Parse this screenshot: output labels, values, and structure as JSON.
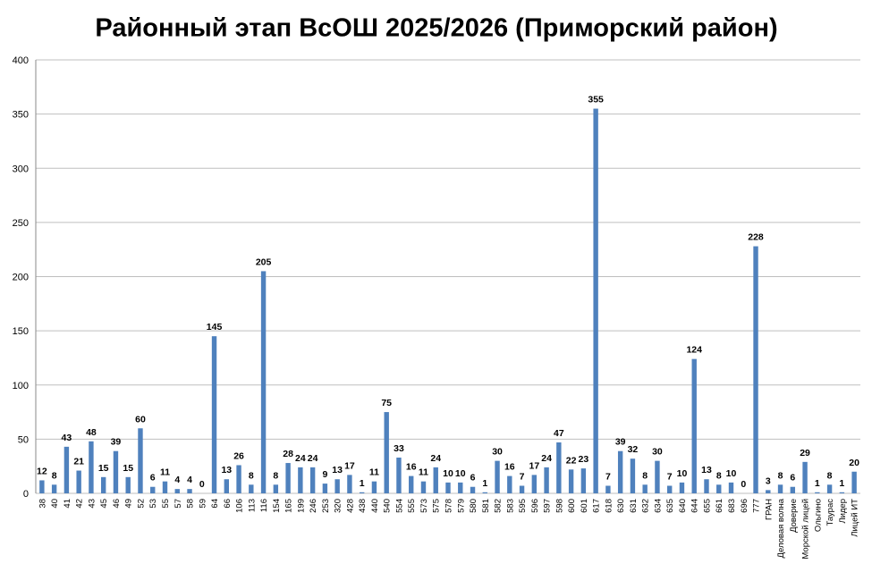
{
  "chart_data": {
    "type": "bar",
    "title": "Районный этап ВсОШ 2025/2026 (Приморский район)",
    "categories": [
      "38",
      "40",
      "41",
      "42",
      "43",
      "45",
      "46",
      "49",
      "52",
      "53",
      "55",
      "57",
      "58",
      "59",
      "64",
      "66",
      "106",
      "113",
      "116",
      "154",
      "165",
      "199",
      "246",
      "253",
      "320",
      "428",
      "438",
      "440",
      "540",
      "554",
      "555",
      "573",
      "575",
      "578",
      "579",
      "580",
      "581",
      "582",
      "583",
      "595",
      "596",
      "597",
      "598",
      "600",
      "601",
      "617",
      "618",
      "630",
      "631",
      "632",
      "634",
      "635",
      "640",
      "644",
      "655",
      "661",
      "683",
      "696",
      "777",
      "ГРАН",
      "Деловая волна",
      "Доверие",
      "Морской лицей",
      "Ольгино",
      "Таурас",
      "Лидер",
      "Лицей ИТ"
    ],
    "values": [
      12,
      8,
      43,
      21,
      48,
      15,
      39,
      15,
      60,
      6,
      11,
      4,
      4,
      0,
      145,
      13,
      26,
      8,
      205,
      8,
      28,
      24,
      24,
      9,
      13,
      17,
      1,
      11,
      75,
      33,
      16,
      11,
      24,
      10,
      10,
      6,
      1,
      30,
      16,
      7,
      17,
      24,
      47,
      22,
      23,
      355,
      7,
      39,
      32,
      8,
      30,
      7,
      10,
      124,
      13,
      8,
      10,
      0,
      228,
      3,
      8,
      6,
      29,
      1,
      8,
      1,
      20
    ],
    "color": "#4f81bd",
    "ylim": [
      0,
      400
    ],
    "yticks": [
      0,
      50,
      100,
      150,
      200,
      250,
      300,
      350,
      400
    ],
    "grid": true
  }
}
